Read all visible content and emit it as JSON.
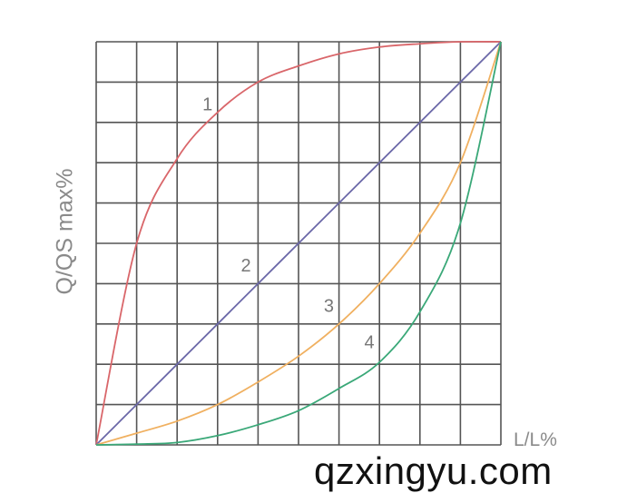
{
  "chart_data": {
    "type": "line",
    "title": "",
    "xlabel": "L/L%",
    "ylabel": "Q/QS max%",
    "xlim": [
      0,
      100
    ],
    "ylim": [
      0,
      100
    ],
    "grid": true,
    "grid_divisions": 10,
    "x": [
      0,
      10,
      20,
      30,
      40,
      50,
      60,
      70,
      80,
      90,
      100
    ],
    "series": [
      {
        "name": "1",
        "color": "#d9666a",
        "values": [
          0,
          50,
          71,
          82.5,
          90,
          94,
          97,
          98.7,
          99.5,
          100,
          100
        ]
      },
      {
        "name": "2",
        "color": "#6b68a8",
        "values": [
          0,
          10,
          20,
          30,
          40,
          50,
          60,
          70,
          80,
          90,
          100
        ]
      },
      {
        "name": "3",
        "color": "#f0b060",
        "values": [
          0,
          2.9,
          5.9,
          10,
          15.6,
          22,
          30,
          40,
          52.5,
          70,
          100
        ]
      },
      {
        "name": "4",
        "color": "#3aa878",
        "values": [
          0,
          0.2,
          0.6,
          2.3,
          5,
          8.5,
          14,
          20.5,
          33,
          55,
          100
        ]
      }
    ],
    "series_label_positions": [
      {
        "x": 27.5,
        "y": 83
      },
      {
        "x": 37,
        "y": 43
      },
      {
        "x": 57.5,
        "y": 33
      },
      {
        "x": 67.5,
        "y": 24
      }
    ]
  },
  "watermark": "qzxingyu.com",
  "grid_color": "#555555"
}
